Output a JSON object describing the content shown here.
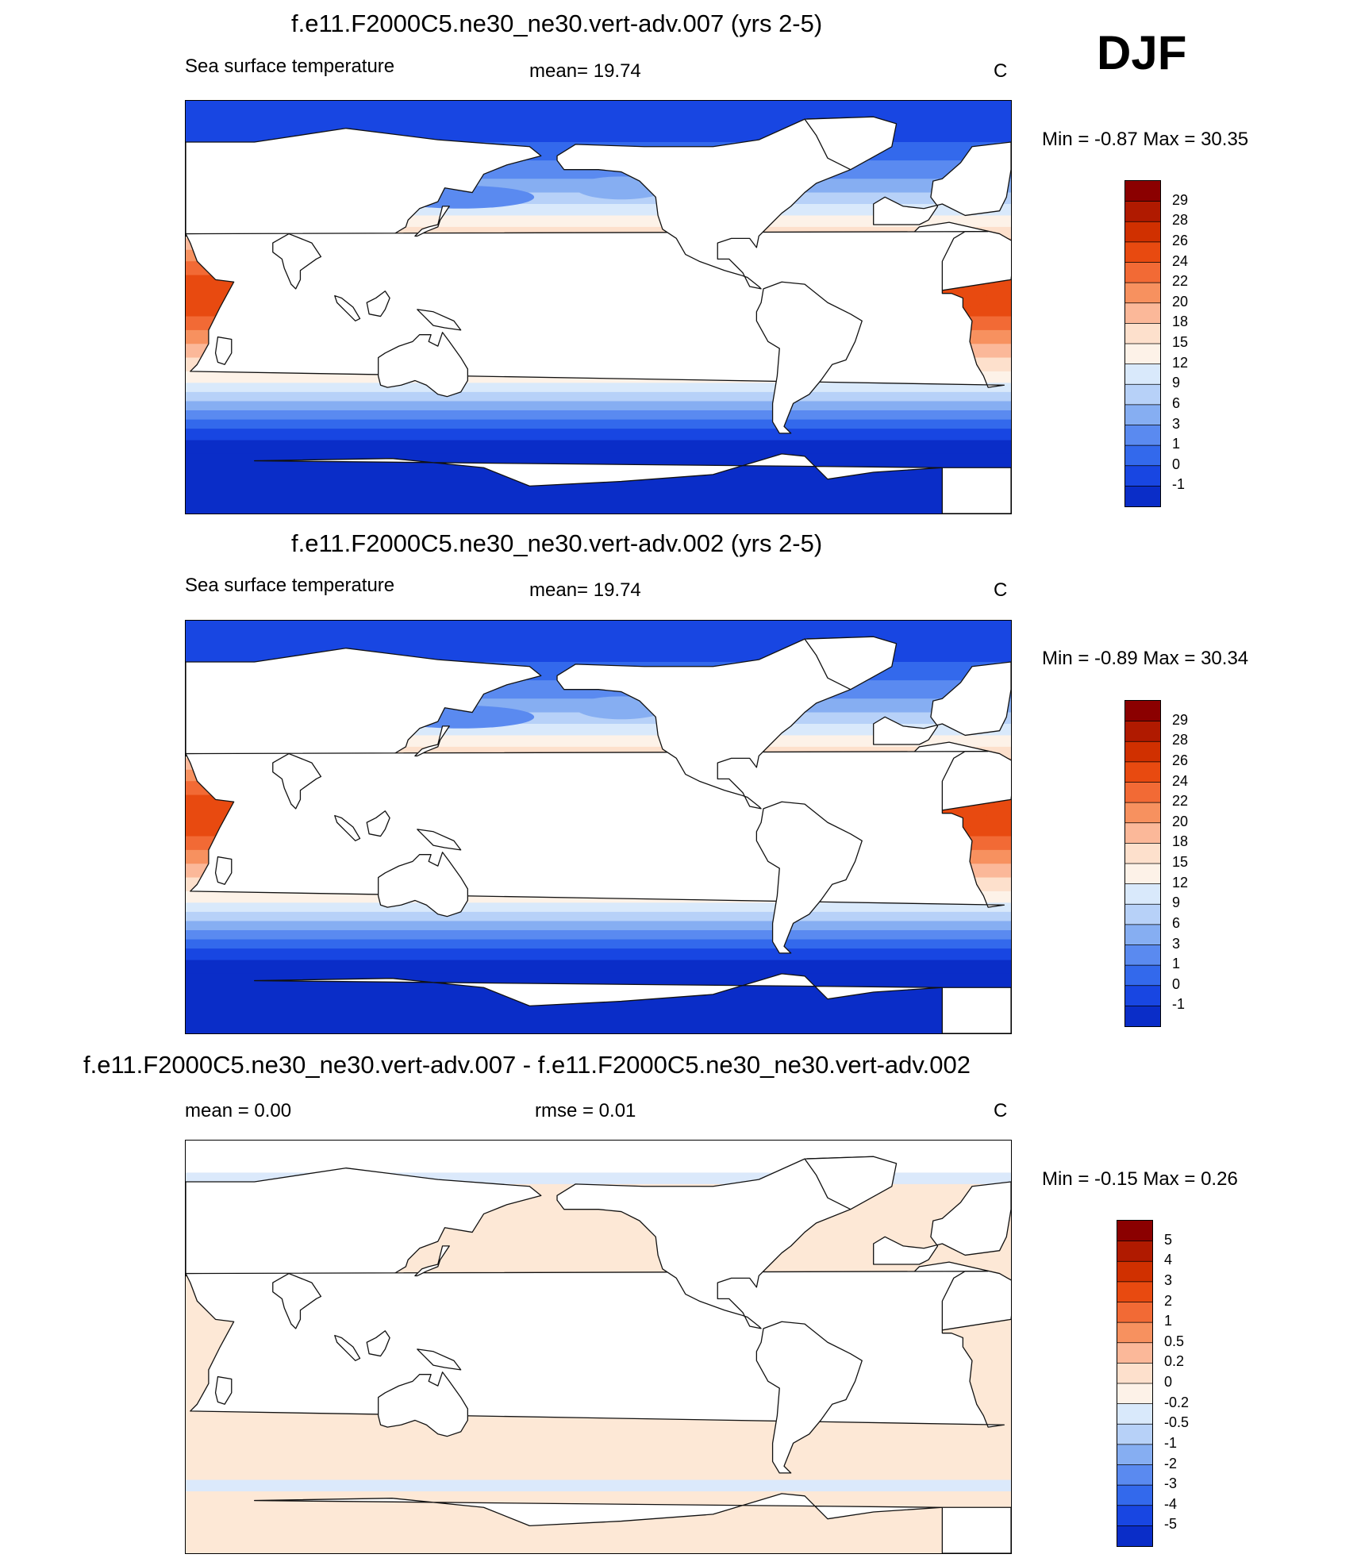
{
  "header": {
    "season": "DJF"
  },
  "units": "C",
  "panels": [
    {
      "id": "panel-1",
      "title": "f.e11.F2000C5.ne30_ne30.vert-adv.007 (yrs 2-5)",
      "left_label": "Sea surface temperature",
      "center_label": "mean=  19.74",
      "right_label": "C",
      "minmax": "Min =  -0.87 Max =  30.35"
    },
    {
      "id": "panel-2",
      "title": "f.e11.F2000C5.ne30_ne30.vert-adv.002 (yrs 2-5)",
      "left_label": "Sea surface temperature",
      "center_label": "mean=  19.74",
      "right_label": "C",
      "minmax": "Min =  -0.89 Max =  30.34"
    },
    {
      "id": "panel-3",
      "title": "f.e11.F2000C5.ne30_ne30.vert-adv.007 - f.e11.F2000C5.ne30_ne30.vert-adv.002",
      "left_label": "mean =   0.00",
      "center_label": "rmse =   0.01",
      "right_label": "C",
      "minmax": "Min =  -0.15 Max =   0.26"
    }
  ],
  "chart_data": [
    {
      "type": "heatmap",
      "title": "f.e11.F2000C5.ne30_ne30.vert-adv.007 (yrs 2-5)",
      "variable": "Sea surface temperature",
      "units": "C",
      "mean": 19.74,
      "min": -0.87,
      "max": 30.35,
      "colorbar_levels": [
        29,
        28,
        26,
        24,
        22,
        20,
        18,
        15,
        12,
        9,
        6,
        3,
        1,
        0,
        -1
      ],
      "colorbar_colors": [
        "#8b0000",
        "#b01a00",
        "#d03000",
        "#e84a10",
        "#f26a35",
        "#f7915f",
        "#fbb899",
        "#fde0cc",
        "#fdf2e8",
        "#d9e9fb",
        "#b7d1f8",
        "#86aef2",
        "#5a8af0",
        "#3369ec",
        "#1846e2",
        "#0a2dc8"
      ]
    },
    {
      "type": "heatmap",
      "title": "f.e11.F2000C5.ne30_ne30.vert-adv.002 (yrs 2-5)",
      "variable": "Sea surface temperature",
      "units": "C",
      "mean": 19.74,
      "min": -0.89,
      "max": 30.34,
      "colorbar_levels": [
        29,
        28,
        26,
        24,
        22,
        20,
        18,
        15,
        12,
        9,
        6,
        3,
        1,
        0,
        -1
      ],
      "colorbar_colors": [
        "#8b0000",
        "#b01a00",
        "#d03000",
        "#e84a10",
        "#f26a35",
        "#f7915f",
        "#fbb899",
        "#fde0cc",
        "#fdf2e8",
        "#d9e9fb",
        "#b7d1f8",
        "#86aef2",
        "#5a8af0",
        "#3369ec",
        "#1846e2",
        "#0a2dc8"
      ]
    },
    {
      "type": "heatmap",
      "title": "f.e11.F2000C5.ne30_ne30.vert-adv.007 - f.e11.F2000C5.ne30_ne30.vert-adv.002",
      "variable": "difference",
      "units": "C",
      "mean": 0.0,
      "rmse": 0.01,
      "min": -0.15,
      "max": 0.26,
      "colorbar_levels": [
        5,
        4,
        3,
        2,
        1,
        0.5,
        0.2,
        0,
        -0.2,
        -0.5,
        -1,
        -2,
        -3,
        -4,
        -5
      ],
      "colorbar_colors": [
        "#8b0000",
        "#b01a00",
        "#d03000",
        "#e84a10",
        "#f26a35",
        "#f7915f",
        "#fbb899",
        "#fde0cc",
        "#fdf2e8",
        "#d9e9fb",
        "#b7d1f8",
        "#86aef2",
        "#5a8af0",
        "#3369ec",
        "#1846e2",
        "#0a2dc8"
      ]
    }
  ]
}
